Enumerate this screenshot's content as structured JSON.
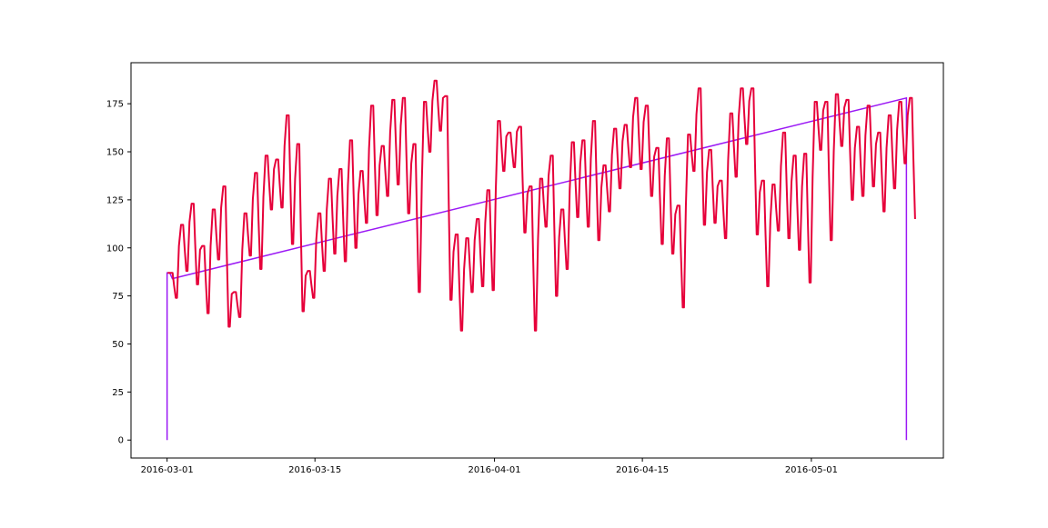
{
  "chart_data": {
    "type": "line",
    "title": "",
    "xlabel": "",
    "ylabel": "",
    "x_ticks": [
      "2016-03-01",
      "2016-03-15",
      "2016-04-01",
      "2016-04-15",
      "2016-05-01"
    ],
    "y_ticks": [
      0,
      25,
      50,
      75,
      100,
      125,
      150,
      175
    ],
    "xlim": [
      "2016-02-26T14:00",
      "2016-05-13T12:00"
    ],
    "ylim": [
      -9.35,
      196.35
    ],
    "grid": false,
    "legend": "none",
    "series": [
      {
        "color": "#9b19f5",
        "points": [
          [
            "2016-03-01T00:00",
            0
          ],
          [
            "2016-03-01T00:00",
            87
          ],
          [
            "2016-03-01T06:00",
            87
          ],
          [
            "2016-03-01T12:00",
            84
          ],
          [
            "2016-05-10T00:00",
            178
          ],
          [
            "2016-05-10T00:00",
            0
          ]
        ]
      },
      {
        "color": "#e6003a",
        "daily_peaks": [
          87,
          112,
          123,
          101,
          120,
          132,
          77,
          118,
          139,
          148,
          146,
          169,
          154,
          88,
          118,
          136,
          141,
          156,
          140,
          174,
          153,
          177,
          178,
          154,
          176,
          187,
          179,
          107,
          105,
          115,
          130,
          166,
          160,
          163,
          132,
          136,
          148,
          120,
          155,
          156,
          166,
          143,
          162,
          164,
          178,
          174,
          152,
          157,
          122,
          159,
          183,
          151,
          135,
          170,
          183,
          183,
          135,
          133,
          160,
          148,
          149,
          176,
          176,
          180,
          177,
          163,
          174,
          160,
          169,
          176,
          178
        ],
        "daily_troughs": [
          74,
          88,
          81,
          66,
          94,
          59,
          64,
          96,
          89,
          120,
          121,
          102,
          67,
          74,
          88,
          97,
          93,
          100,
          113,
          117,
          127,
          133,
          118,
          77,
          150,
          161,
          73,
          57,
          77,
          80,
          78,
          140,
          142,
          108,
          57,
          111,
          75,
          89,
          116,
          111,
          104,
          119,
          131,
          142,
          141,
          127,
          102,
          97,
          69,
          140,
          112,
          113,
          105,
          137,
          154,
          107,
          80,
          109,
          105,
          99,
          82,
          151,
          104,
          153,
          125,
          127,
          132,
          119,
          131,
          144,
          115
        ],
        "start_date": "2016-03-01"
      }
    ]
  }
}
